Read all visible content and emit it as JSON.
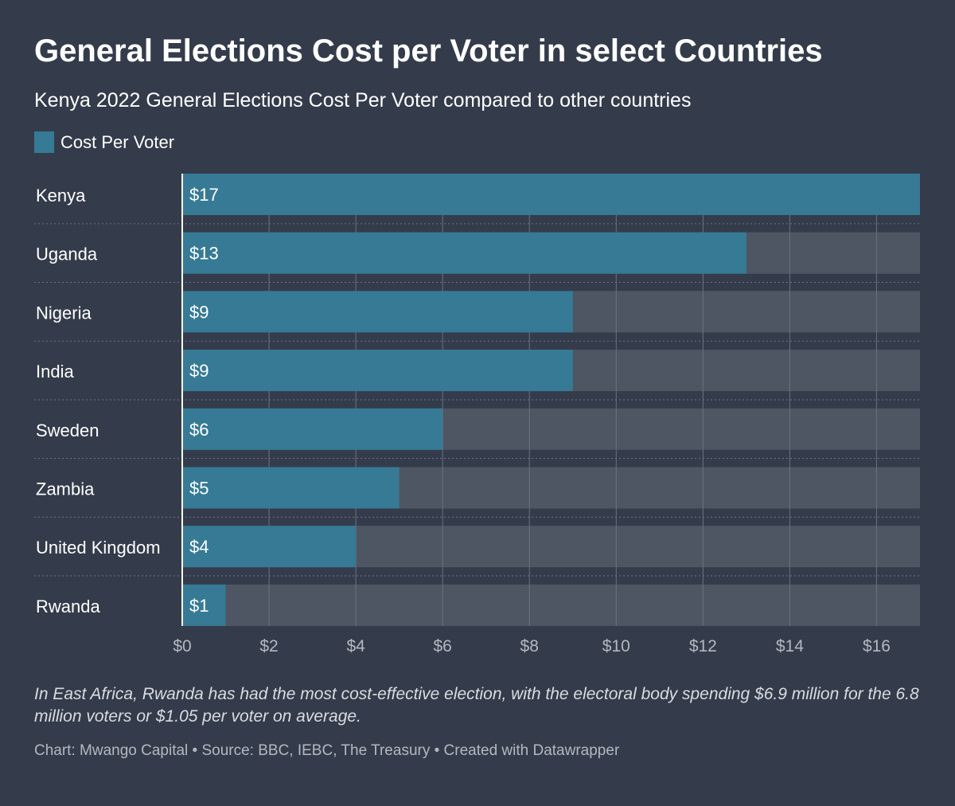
{
  "title": "General Elections Cost per Voter in select Countries",
  "subtitle": "Kenya 2022 General Elections Cost Per Voter compared to other countries",
  "legend": {
    "label": "Cost Per Voter"
  },
  "colors": {
    "background": "#343c4b",
    "bar": "#367a95",
    "track": "#4f5663",
    "grid": "#6a7180",
    "axis_text": "#b3b8c1"
  },
  "chart_data": {
    "type": "bar",
    "orientation": "horizontal",
    "categories": [
      "Kenya",
      "Uganda",
      "Nigeria",
      "India",
      "Sweden",
      "Zambia",
      "United Kingdom",
      "Rwanda"
    ],
    "series": [
      {
        "name": "Cost Per Voter",
        "values": [
          17,
          13,
          9,
          9,
          6,
          5,
          4,
          1
        ],
        "labels": [
          "$17",
          "$13",
          "$9",
          "$9",
          "$6",
          "$5",
          "$4",
          "$1"
        ]
      }
    ],
    "xlim": [
      0,
      17
    ],
    "xticks": [
      0,
      2,
      4,
      6,
      8,
      10,
      12,
      14,
      16
    ],
    "xtick_labels": [
      "$0",
      "$2",
      "$4",
      "$6",
      "$8",
      "$10",
      "$12",
      "$14",
      "$16"
    ],
    "grid": true,
    "legend_position": "top-left"
  },
  "note": "In East Africa, Rwanda has had the most cost-effective election, with the electoral body spending $6.9 million for the 6.8 million voters or $1.05 per voter on average.",
  "credit": "Chart: Mwango Capital • Source: BBC, IEBC, The Treasury • Created with Datawrapper"
}
